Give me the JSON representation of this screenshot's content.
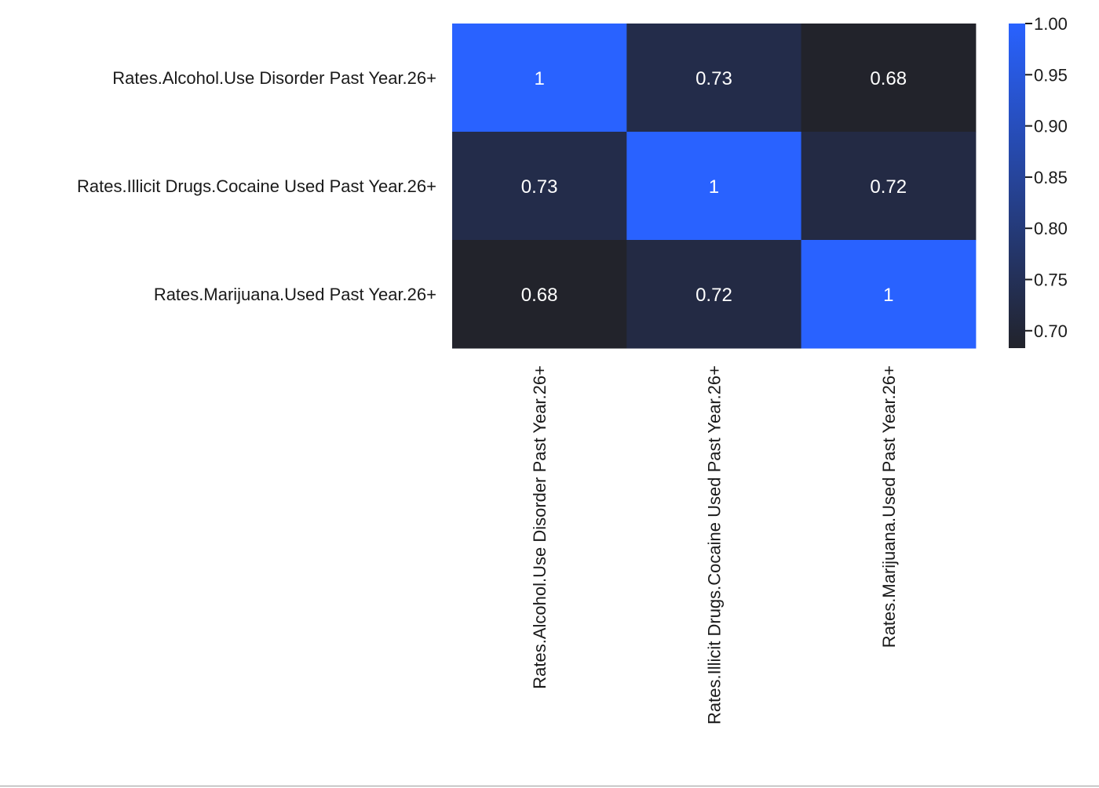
{
  "chart_data": {
    "type": "heatmap",
    "title": "",
    "xlabel": "",
    "ylabel": "",
    "row_labels": [
      "Rates.Alcohol.Use Disorder Past Year.26+",
      "Rates.Illicit Drugs.Cocaine Used Past Year.26+",
      "Rates.Marijuana.Used Past Year.26+"
    ],
    "col_labels": [
      "Rates.Alcohol.Use Disorder Past Year.26+",
      "Rates.Illicit Drugs.Cocaine Used Past Year.26+",
      "Rates.Marijuana.Used Past Year.26+"
    ],
    "values": [
      [
        1,
        0.73,
        0.68
      ],
      [
        0.73,
        1,
        0.72
      ],
      [
        0.68,
        0.72,
        1
      ]
    ],
    "cell_labels": [
      [
        "1",
        "0.73",
        "0.68"
      ],
      [
        "0.73",
        "1",
        "0.72"
      ],
      [
        "0.68",
        "0.72",
        "1"
      ]
    ],
    "colorbar": {
      "min": 0.683,
      "max": 1.0,
      "ticks": [
        0.7,
        0.75,
        0.8,
        0.85,
        0.9,
        0.95,
        1.0
      ],
      "tick_labels": [
        "0.70",
        "0.75",
        "0.80",
        "0.85",
        "0.90",
        "0.95",
        "1.00"
      ],
      "low_color": "#22232b",
      "high_color": "#2962ff"
    },
    "annotation_color": "#ffffff"
  }
}
